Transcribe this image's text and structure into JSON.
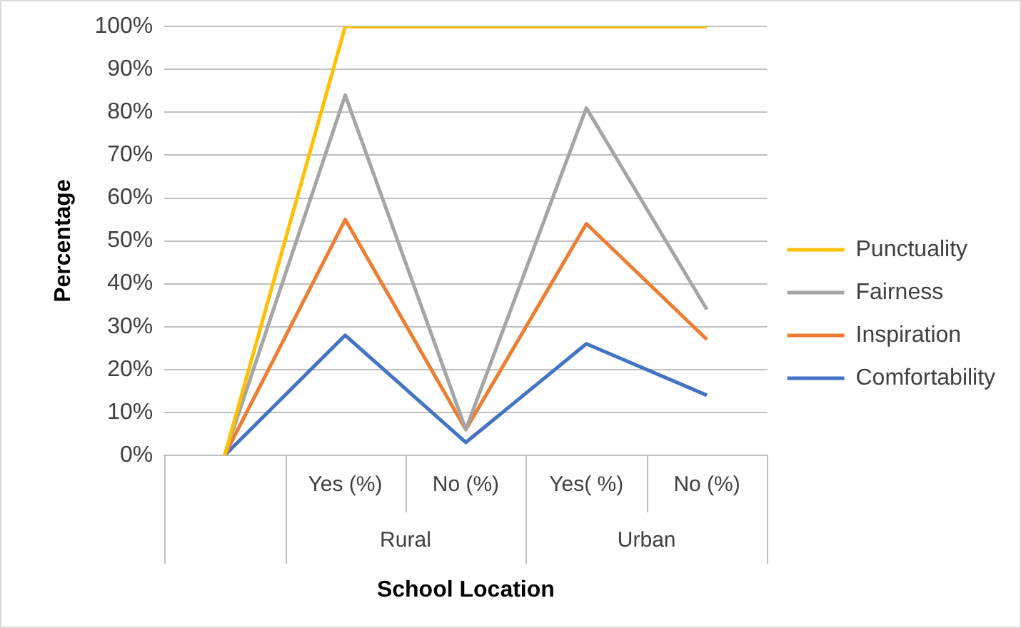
{
  "chart_data": {
    "type": "line",
    "xlabel": "School Location",
    "ylabel": "Percentage",
    "categories": [
      null,
      "Yes (%)",
      "No (%)",
      "Yes( %)",
      "No (%)"
    ],
    "series": [
      {
        "name": "Punctuality",
        "color": "#ffc000",
        "values": [
          0,
          100,
          100,
          100,
          100
        ]
      },
      {
        "name": "Fairness",
        "color": "#a5a5a5",
        "values": [
          0,
          84,
          6,
          81,
          34
        ]
      },
      {
        "name": "Inspiration",
        "color": "#ed7d31",
        "values": [
          0,
          55,
          6,
          54,
          27
        ]
      },
      {
        "name": "Comfortability",
        "color": "#4472c4",
        "values": [
          0,
          28,
          3,
          26,
          14
        ]
      }
    ],
    "ylim": [
      0,
      100
    ],
    "yticks": [
      {
        "value": 0,
        "label": "0%"
      },
      {
        "value": 10,
        "label": "10%"
      },
      {
        "value": 20,
        "label": "20%"
      },
      {
        "value": 30,
        "label": "30%"
      },
      {
        "value": 40,
        "label": "40%"
      },
      {
        "value": 50,
        "label": "50%"
      },
      {
        "value": 60,
        "label": "60%"
      },
      {
        "value": 70,
        "label": "70%"
      },
      {
        "value": 80,
        "label": "80%"
      },
      {
        "value": 90,
        "label": "90%"
      },
      {
        "value": 100,
        "label": "100%"
      }
    ],
    "annotations": [
      "Rural",
      "Urban"
    ],
    "grid": "y",
    "legend": "right",
    "marker": "none",
    "line_style": "solid"
  }
}
